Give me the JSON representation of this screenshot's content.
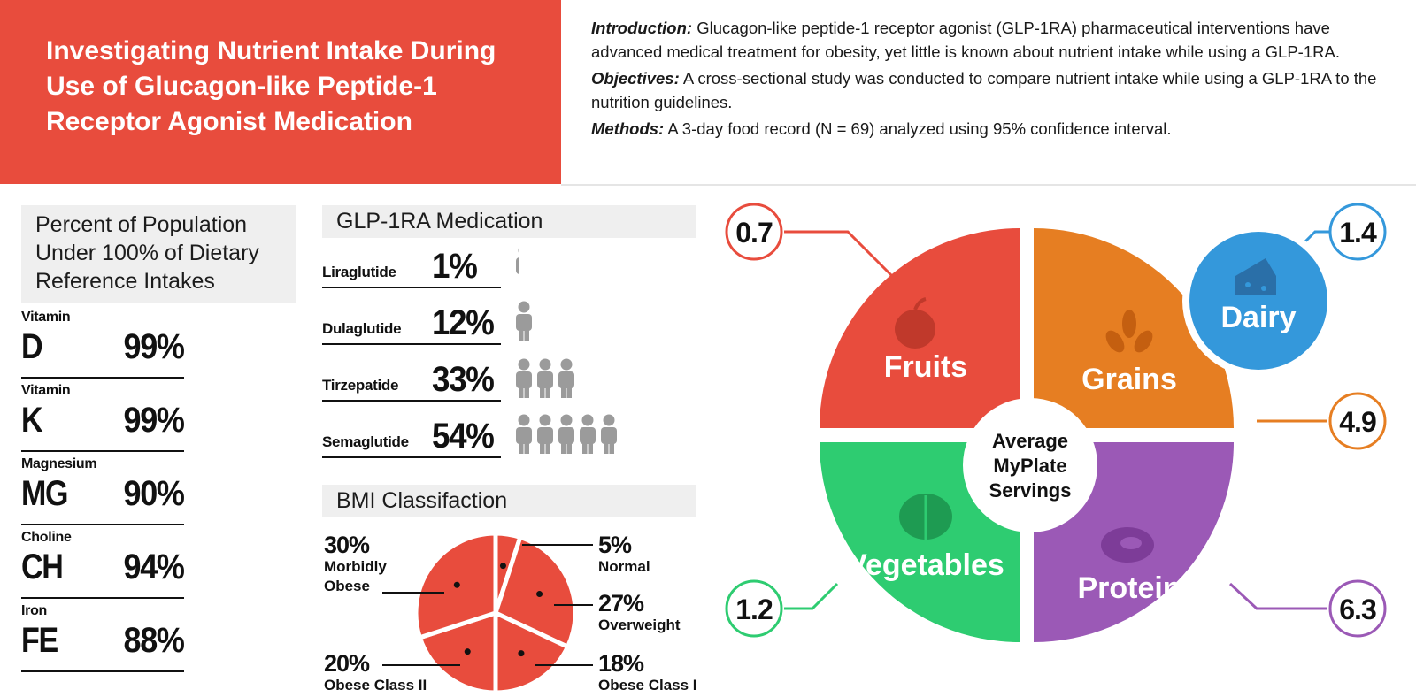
{
  "title": "Investigating Nutrient Intake During Use of Glucagon-like Peptide-1 Receptor Agonist Medication",
  "intro": {
    "introduction_label": "Introduction:",
    "introduction_text": "Glucagon-like peptide-1 receptor agonist (GLP-1RA) pharmaceutical interventions have advanced medical treatment for obesity, yet little is known about nutrient intake while using a GLP-1RA.",
    "objectives_label": "Objectives:",
    "objectives_text": "A cross-sectional study was conducted to compare nutrient intake while using a GLP-1RA to the nutrition guidelines.",
    "methods_label": "Methods:",
    "methods_text": "A 3-day food record (N = 69) analyzed using 95% confidence interval."
  },
  "dri": {
    "heading": "Percent of Population Under 100% of Dietary Reference Intakes",
    "items": [
      {
        "label": "Vitamin",
        "symbol": "D",
        "percent": "99%"
      },
      {
        "label": "Vitamin",
        "symbol": "K",
        "percent": "99%"
      },
      {
        "label": "Magnesium",
        "symbol": "MG",
        "percent": "90%"
      },
      {
        "label": "Choline",
        "symbol": "CH",
        "percent": "94%"
      },
      {
        "label": "Iron",
        "symbol": "FE",
        "percent": "88%"
      }
    ]
  },
  "medication": {
    "heading": "GLP-1RA Medication",
    "items": [
      {
        "name": "Liraglutide",
        "percent": "1%",
        "icons": 0.2
      },
      {
        "name": "Dulaglutide",
        "percent": "12%",
        "icons": 1
      },
      {
        "name": "Tirzepatide",
        "percent": "33%",
        "icons": 3
      },
      {
        "name": "Semaglutide",
        "percent": "54%",
        "icons": 5
      }
    ],
    "icon_color": "#9b9b9b"
  },
  "bmi": {
    "heading": "BMI Classifaction",
    "color": "#e84c3d",
    "slices": [
      {
        "percent": "5%",
        "label": "Normal",
        "value": 5
      },
      {
        "percent": "27%",
        "label": "Overweight",
        "value": 27
      },
      {
        "percent": "18%",
        "label": "Obese Class I",
        "value": 18
      },
      {
        "percent": "20%",
        "label": "Obese Class II",
        "value": 20
      },
      {
        "percent": "30%",
        "label": "Morbidly Obese",
        "value": 30
      }
    ]
  },
  "plate": {
    "center_text": [
      "Average",
      "MyPlate",
      "Servings"
    ],
    "groups": [
      {
        "name": "Fruits",
        "servings": "0.7",
        "color": "#e84c3d",
        "icon": "apple-icon"
      },
      {
        "name": "Grains",
        "servings": "4.9",
        "color": "#e67e22",
        "icon": "wheat-icon"
      },
      {
        "name": "Vegetables",
        "servings": "1.2",
        "color": "#2ecc71",
        "icon": "lettuce-icon"
      },
      {
        "name": "Protein",
        "servings": "6.3",
        "color": "#9b59b6",
        "icon": "steak-icon"
      },
      {
        "name": "Dairy",
        "servings": "1.4",
        "color": "#3498db",
        "icon": "cheese-icon"
      }
    ]
  }
}
